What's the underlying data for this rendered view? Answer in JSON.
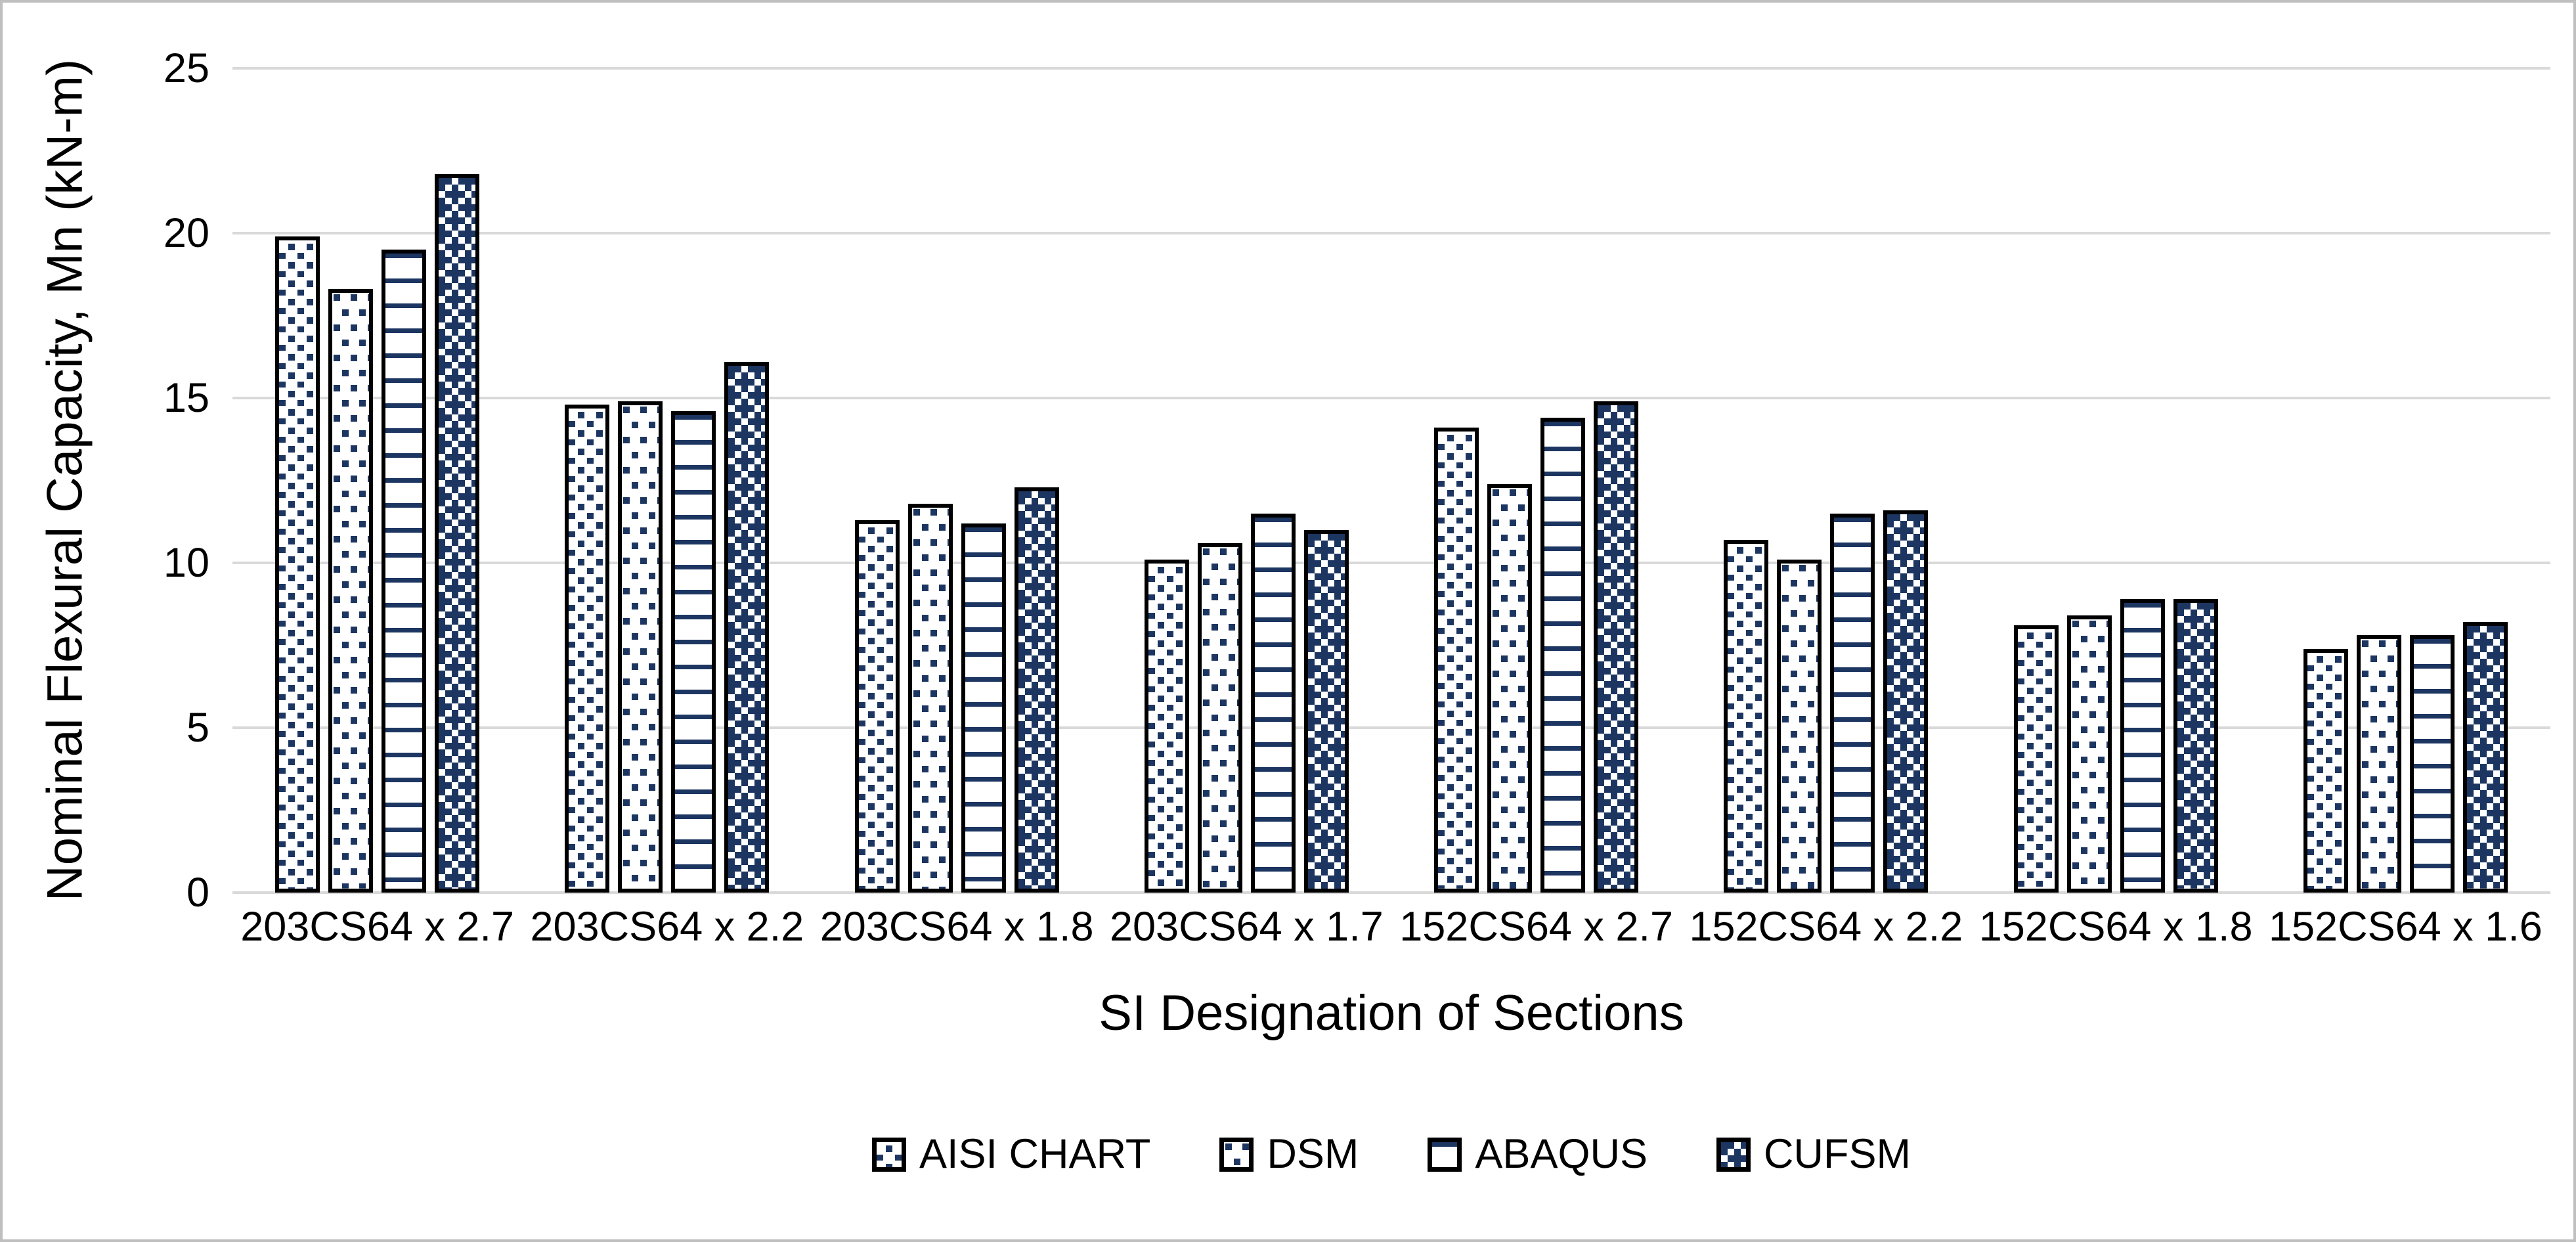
{
  "chart_data": {
    "type": "bar",
    "title": "",
    "xlabel": "SI Designation of Sections",
    "ylabel": "Nominal Flexural Capacity, Mn (kN-m)",
    "ylim": [
      0,
      25
    ],
    "yticks": [
      0,
      5,
      10,
      15,
      20,
      25
    ],
    "grid": true,
    "legend_position": "bottom-center",
    "categories": [
      "203CS64 x 2.7",
      "203CS64 x 2.2",
      "203CS64 x 1.8",
      "203CS64 x 1.7",
      "152CS64 x 2.7",
      "152CS64 x 2.2",
      "152CS64 x 1.8",
      "152CS64 x 1.6"
    ],
    "series": [
      {
        "name": "AISI CHART",
        "pattern": "diagonal-stripes",
        "values": [
          19.9,
          14.8,
          11.3,
          10.1,
          14.1,
          10.7,
          8.1,
          7.4
        ]
      },
      {
        "name": "DSM",
        "pattern": "dots",
        "values": [
          18.3,
          14.9,
          11.8,
          10.6,
          12.4,
          10.1,
          8.4,
          7.8
        ]
      },
      {
        "name": "ABAQUS",
        "pattern": "horizontal-lines",
        "values": [
          19.5,
          14.6,
          11.2,
          11.5,
          14.4,
          11.5,
          8.9,
          7.8
        ]
      },
      {
        "name": "CUFSM",
        "pattern": "dotted-diamond",
        "values": [
          21.8,
          16.1,
          12.3,
          11.0,
          14.9,
          11.6,
          8.9,
          8.2
        ]
      }
    ],
    "colors": {
      "pattern_fill": "#1C3661",
      "bar_border": "#000000",
      "gridline": "#D9D9D9",
      "chart_border": "#BFBFBF",
      "background": "#FFFFFF",
      "text": "#000000"
    }
  }
}
